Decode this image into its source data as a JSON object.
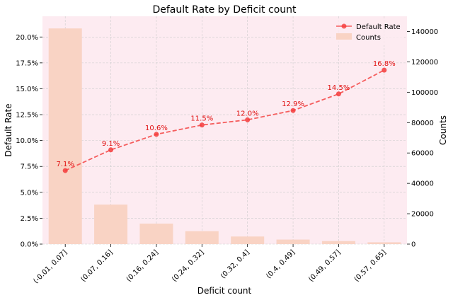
{
  "chart_data": {
    "type": "bar+line",
    "title": "Default Rate by Deficit count",
    "xlabel": "Deficit count",
    "ylabel_left": "Default Rate",
    "ylabel_right": "Counts",
    "categories": [
      "(-0.01, 0.07]",
      "(0.07, 0.16]",
      "(0.16, 0.24]",
      "(0.24, 0.32]",
      "(0.32, 0.4]",
      "(0.4, 0.49]",
      "(0.49, 0.57]",
      "(0.57, 0.65]"
    ],
    "series": [
      {
        "name": "Counts",
        "kind": "bar",
        "axis": "right",
        "values": [
          142000,
          26000,
          13500,
          8500,
          5000,
          3000,
          2000,
          1200
        ]
      },
      {
        "name": "Default Rate",
        "kind": "line",
        "axis": "left",
        "values": [
          0.071,
          0.091,
          0.106,
          0.115,
          0.12,
          0.129,
          0.145,
          0.168
        ],
        "labels": [
          "7.1%",
          "9.1%",
          "10.6%",
          "11.5%",
          "12.0%",
          "12.9%",
          "14.5%",
          "16.8%"
        ]
      }
    ],
    "ylim_left": [
      0,
      0.22
    ],
    "yticks_left": [
      "0.0%",
      "2.5%",
      "5.0%",
      "7.5%",
      "10.0%",
      "12.5%",
      "15.0%",
      "17.5%",
      "20.0%"
    ],
    "ylim_right": [
      0,
      150000
    ],
    "yticks_right": [
      "0",
      "20000",
      "40000",
      "60000",
      "80000",
      "100000",
      "120000",
      "140000"
    ],
    "grid": true,
    "legend_position": "top-right",
    "colors": {
      "plot_bg": "#fdebf1",
      "bar": "#f9d3c4",
      "line": "#f55d5d",
      "marker": "#f53b3b",
      "label": "#e01010",
      "grid": "#cccccc"
    }
  }
}
